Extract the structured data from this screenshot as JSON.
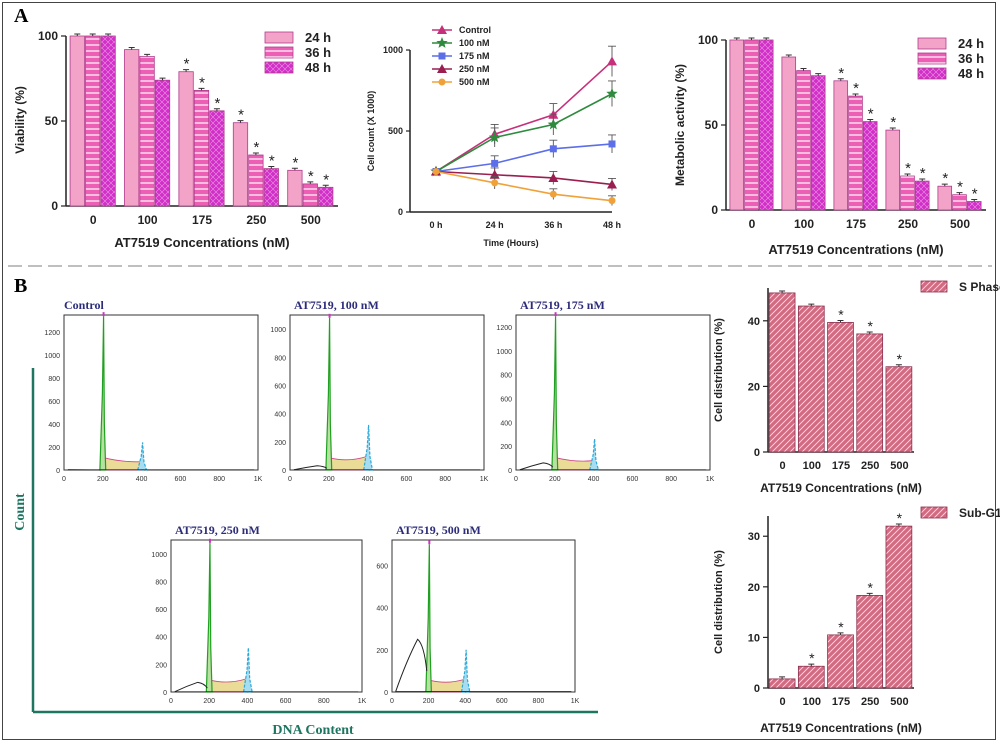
{
  "panels": {
    "a": "A",
    "b": "B"
  },
  "colors": {
    "pink_light": "#f2a3c7",
    "pink_mid": "#ec5fb5",
    "magenta": "#d22fc8",
    "rose": "#d46a82",
    "teal": "#1e7560",
    "flow_green": "#20a020",
    "flow_fill": "#e8d88c",
    "flow_blue": "#2aa8d8",
    "flow_title": "#2c2c7a"
  },
  "chart_data": [
    {
      "id": "viability",
      "type": "bar",
      "ylabel": "Viability (%)",
      "xlabel": "AT7519 Concentrations (nM)",
      "categories": [
        "0",
        "100",
        "175",
        "250",
        "500"
      ],
      "ylim": [
        0,
        100
      ],
      "yticks": [
        0,
        50,
        100
      ],
      "series": [
        {
          "name": "24 h",
          "values": [
            100,
            92,
            79,
            49,
            21
          ]
        },
        {
          "name": "36 h",
          "values": [
            100,
            88,
            68,
            30,
            13
          ]
        },
        {
          "name": "48 h",
          "values": [
            100,
            74,
            56,
            22,
            11
          ]
        }
      ],
      "stars": [
        [
          false,
          false,
          false
        ],
        [
          false,
          false,
          false
        ],
        [
          true,
          true,
          true
        ],
        [
          true,
          true,
          true
        ],
        [
          true,
          true,
          true
        ]
      ],
      "star": "*",
      "legend_position": "top-right"
    },
    {
      "id": "cellcount",
      "type": "line",
      "ylabel": "Cell count (X 1000)",
      "xlabel": "Time (Hours)",
      "categories": [
        "0 h",
        "24 h",
        "36 h",
        "48 h"
      ],
      "ylim": [
        0,
        1000
      ],
      "yticks": [
        0,
        500,
        1000
      ],
      "series": [
        {
          "name": "Control",
          "values": [
            250,
            480,
            600,
            930
          ]
        },
        {
          "name": "100 nM",
          "values": [
            250,
            460,
            540,
            730
          ]
        },
        {
          "name": "175 nM",
          "values": [
            250,
            300,
            390,
            420
          ]
        },
        {
          "name": "250 nM",
          "values": [
            250,
            230,
            210,
            170
          ]
        },
        {
          "name": "500 nM",
          "values": [
            250,
            180,
            110,
            70
          ]
        }
      ],
      "legend_position": "top-left"
    },
    {
      "id": "metabolic",
      "type": "bar",
      "ylabel": "Metabolic activity (%)",
      "xlabel": "AT7519 Concentrations (nM)",
      "categories": [
        "0",
        "100",
        "175",
        "250",
        "500"
      ],
      "ylim": [
        0,
        100
      ],
      "yticks": [
        0,
        50,
        100
      ],
      "series": [
        {
          "name": "24 h",
          "values": [
            100,
            90,
            76,
            47,
            14
          ]
        },
        {
          "name": "36 h",
          "values": [
            100,
            82,
            67,
            20,
            9
          ]
        },
        {
          "name": "48 h",
          "values": [
            100,
            79,
            52,
            17,
            5
          ]
        }
      ],
      "stars": [
        [
          false,
          false,
          false
        ],
        [
          false,
          false,
          false
        ],
        [
          true,
          true,
          true
        ],
        [
          true,
          true,
          true
        ],
        [
          true,
          true,
          true
        ]
      ],
      "star": "*",
      "legend_position": "top-right"
    },
    {
      "id": "sphase",
      "type": "bar",
      "ylabel": "Cell distribution (%)",
      "xlabel": "AT7519 Concentrations (nM)",
      "categories": [
        "0",
        "100",
        "175",
        "250",
        "500"
      ],
      "ylim": [
        0,
        50
      ],
      "yticks": [
        0,
        20,
        40
      ],
      "series": [
        {
          "name": "S Phase",
          "values": [
            48.5,
            44.5,
            39.5,
            36,
            26
          ]
        }
      ],
      "stars": [
        [
          false
        ],
        [
          false
        ],
        [
          true
        ],
        [
          true
        ],
        [
          true
        ]
      ],
      "star": "*",
      "legend_position": "top-right"
    },
    {
      "id": "subg1",
      "type": "bar",
      "ylabel": "Cell distribution (%)",
      "xlabel": "AT7519 Concentrations (nM)",
      "categories": [
        "0",
        "100",
        "175",
        "250",
        "500"
      ],
      "ylim": [
        0,
        34
      ],
      "yticks": [
        0,
        10,
        20,
        30
      ],
      "series": [
        {
          "name": "Sub-G1",
          "values": [
            1.8,
            4.3,
            10.5,
            18.3,
            32
          ]
        }
      ],
      "stars": [
        [
          false
        ],
        [
          true
        ],
        [
          true
        ],
        [
          true
        ],
        [
          true
        ]
      ],
      "star": "*",
      "legend_position": "top-right"
    }
  ],
  "flow": {
    "ylabel": "Count",
    "xlabel": "DNA Content",
    "x_ticks": [
      "0",
      "200",
      "400",
      "600",
      "800",
      "1K"
    ],
    "histograms": [
      {
        "title": "Control",
        "yticks": [
          0,
          200,
          400,
          600,
          800,
          1000,
          1200
        ],
        "ymax": 1350,
        "g1": 1340,
        "g2": 240,
        "subg1": 0
      },
      {
        "title": "AT7519, 100 nM",
        "yticks": [
          0,
          200,
          400,
          600,
          800,
          1000
        ],
        "ymax": 1100,
        "g1": 1080,
        "g2": 320,
        "subg1": 30
      },
      {
        "title": "AT7519, 175 nM",
        "yticks": [
          0,
          200,
          400,
          600,
          800,
          1000,
          1200
        ],
        "ymax": 1300,
        "g1": 1290,
        "g2": 260,
        "subg1": 60
      },
      {
        "title": "AT7519, 250 nM",
        "yticks": [
          0,
          200,
          400,
          600,
          800,
          1000
        ],
        "ymax": 1100,
        "g1": 1080,
        "g2": 320,
        "subg1": 70
      },
      {
        "title": "AT7519, 500 nM",
        "yticks": [
          0,
          200,
          400,
          600
        ],
        "ymax": 720,
        "g1": 700,
        "g2": 200,
        "subg1": 250
      }
    ]
  }
}
